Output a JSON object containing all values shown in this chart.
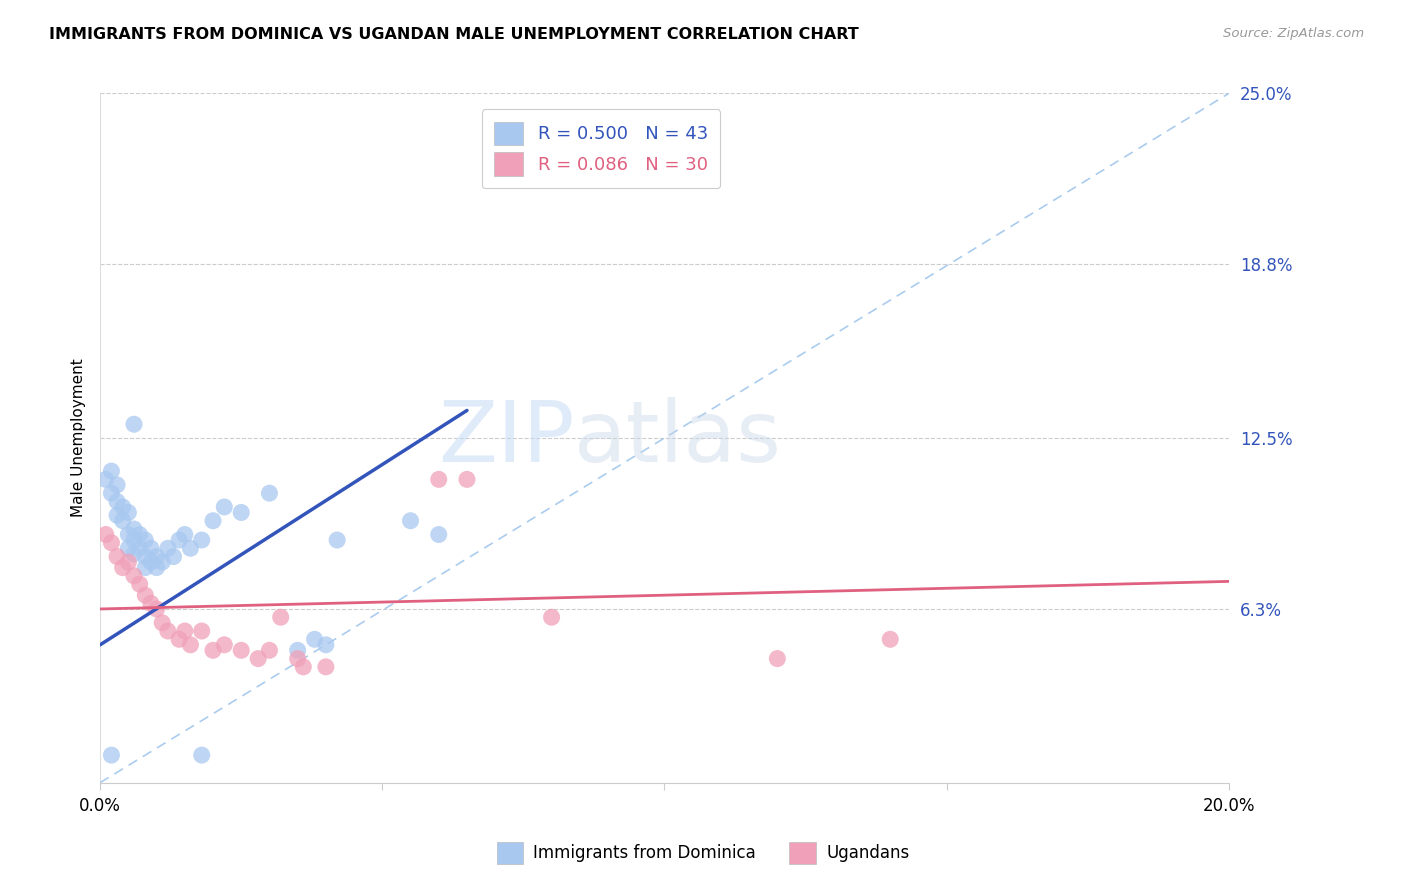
{
  "title": "IMMIGRANTS FROM DOMINICA VS UGANDAN MALE UNEMPLOYMENT CORRELATION CHART",
  "source": "Source: ZipAtlas.com",
  "ylabel": "Male Unemployment",
  "xlim": [
    0.0,
    0.2
  ],
  "ylim": [
    0.0,
    0.25
  ],
  "xticks": [
    0.0,
    0.05,
    0.1,
    0.15,
    0.2
  ],
  "xticklabels": [
    "0.0%",
    "",
    "",
    "",
    "20.0%"
  ],
  "ytick_positions": [
    0.063,
    0.125,
    0.188,
    0.25
  ],
  "ytick_labels": [
    "6.3%",
    "12.5%",
    "18.8%",
    "25.0%"
  ],
  "watermark_zip": "ZIP",
  "watermark_atlas": "atlas",
  "blue_color": "#A8C8F0",
  "pink_color": "#F0A0B8",
  "blue_line_color": "#3355BB",
  "pink_line_color": "#E06080",
  "ref_line_color": "#AACCEE",
  "legend_blue_r": "0.500",
  "legend_blue_n": "43",
  "legend_pink_r": "0.086",
  "legend_pink_n": "30",
  "blue_scatter": [
    [
      0.001,
      0.11
    ],
    [
      0.002,
      0.113
    ],
    [
      0.002,
      0.105
    ],
    [
      0.003,
      0.108
    ],
    [
      0.003,
      0.102
    ],
    [
      0.003,
      0.097
    ],
    [
      0.004,
      0.1
    ],
    [
      0.004,
      0.095
    ],
    [
      0.005,
      0.098
    ],
    [
      0.005,
      0.09
    ],
    [
      0.005,
      0.085
    ],
    [
      0.006,
      0.092
    ],
    [
      0.006,
      0.088
    ],
    [
      0.006,
      0.083
    ],
    [
      0.007,
      0.09
    ],
    [
      0.007,
      0.085
    ],
    [
      0.008,
      0.088
    ],
    [
      0.008,
      0.082
    ],
    [
      0.008,
      0.078
    ],
    [
      0.009,
      0.085
    ],
    [
      0.009,
      0.08
    ],
    [
      0.01,
      0.082
    ],
    [
      0.01,
      0.078
    ],
    [
      0.011,
      0.08
    ],
    [
      0.012,
      0.085
    ],
    [
      0.013,
      0.082
    ],
    [
      0.014,
      0.088
    ],
    [
      0.015,
      0.09
    ],
    [
      0.016,
      0.085
    ],
    [
      0.018,
      0.088
    ],
    [
      0.02,
      0.095
    ],
    [
      0.022,
      0.1
    ],
    [
      0.025,
      0.098
    ],
    [
      0.03,
      0.105
    ],
    [
      0.035,
      0.048
    ],
    [
      0.038,
      0.052
    ],
    [
      0.04,
      0.05
    ],
    [
      0.042,
      0.088
    ],
    [
      0.055,
      0.095
    ],
    [
      0.06,
      0.09
    ],
    [
      0.006,
      0.13
    ],
    [
      0.002,
      0.01
    ],
    [
      0.018,
      0.01
    ]
  ],
  "pink_scatter": [
    [
      0.001,
      0.09
    ],
    [
      0.002,
      0.087
    ],
    [
      0.003,
      0.082
    ],
    [
      0.004,
      0.078
    ],
    [
      0.005,
      0.08
    ],
    [
      0.006,
      0.075
    ],
    [
      0.007,
      0.072
    ],
    [
      0.008,
      0.068
    ],
    [
      0.009,
      0.065
    ],
    [
      0.01,
      0.063
    ],
    [
      0.011,
      0.058
    ],
    [
      0.012,
      0.055
    ],
    [
      0.014,
      0.052
    ],
    [
      0.015,
      0.055
    ],
    [
      0.016,
      0.05
    ],
    [
      0.018,
      0.055
    ],
    [
      0.02,
      0.048
    ],
    [
      0.022,
      0.05
    ],
    [
      0.025,
      0.048
    ],
    [
      0.028,
      0.045
    ],
    [
      0.03,
      0.048
    ],
    [
      0.032,
      0.06
    ],
    [
      0.035,
      0.045
    ],
    [
      0.036,
      0.042
    ],
    [
      0.04,
      0.042
    ],
    [
      0.06,
      0.11
    ],
    [
      0.065,
      0.11
    ],
    [
      0.08,
      0.06
    ],
    [
      0.12,
      0.045
    ],
    [
      0.14,
      0.052
    ]
  ],
  "blue_line_x": [
    0.0,
    0.065
  ],
  "blue_line_y": [
    0.05,
    0.135
  ],
  "pink_line_x": [
    0.0,
    0.2
  ],
  "pink_line_y": [
    0.063,
    0.073
  ]
}
